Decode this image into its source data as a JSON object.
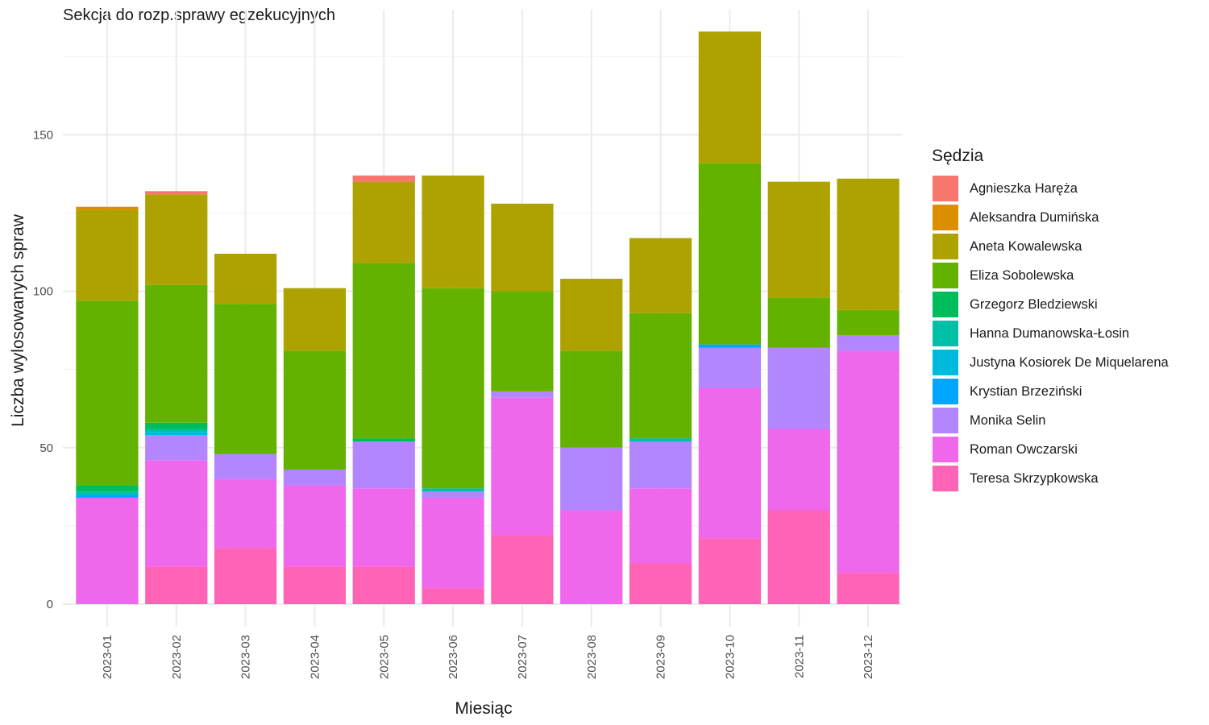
{
  "chart_data": {
    "type": "bar",
    "stacked": true,
    "title": "Sekcja do rozp.sprawy egzekucyjnych",
    "xlabel": "Miesiąc",
    "ylabel": "Liczba wylosowanych spraw",
    "ylim": [
      0,
      190
    ],
    "yticks": [
      "0",
      "50",
      "100",
      "150"
    ],
    "grid": true,
    "legend_title": "Sędzia",
    "legend_position": "right",
    "categories": [
      "2023-01",
      "2023-02",
      "2023-03",
      "2023-04",
      "2023-05",
      "2023-06",
      "2023-07",
      "2023-08",
      "2023-09",
      "2023-10",
      "2023-11",
      "2023-12"
    ],
    "series": [
      {
        "name": "Agnieszka Haręża",
        "color": "#F8766D",
        "values": [
          0,
          1,
          0,
          0,
          2,
          0,
          0,
          0,
          0,
          0,
          0,
          0
        ]
      },
      {
        "name": "Aleksandra Dumińska",
        "color": "#DB8E00",
        "values": [
          1,
          0,
          0,
          0,
          0,
          0,
          0,
          0,
          0,
          0,
          0,
          0
        ]
      },
      {
        "name": "Aneta Kowalewska",
        "color": "#AEA200",
        "values": [
          29,
          29,
          16,
          20,
          26,
          36,
          28,
          23,
          24,
          42,
          37,
          42
        ]
      },
      {
        "name": "Eliza Sobolewska",
        "color": "#64B200",
        "values": [
          59,
          44,
          48,
          38,
          56,
          64,
          32,
          31,
          40,
          58,
          16,
          8
        ]
      },
      {
        "name": "Grzegorz Bledziewski",
        "color": "#00BD5C",
        "values": [
          2,
          2,
          0,
          0,
          1,
          0,
          0,
          0,
          0,
          0,
          0,
          0
        ]
      },
      {
        "name": "Hanna Dumanowska-Łosin",
        "color": "#00C1A7",
        "values": [
          1,
          1,
          0,
          0,
          0,
          1,
          0,
          0,
          1,
          0,
          0,
          0
        ]
      },
      {
        "name": "Justyna Kosiorek De Miquelarena",
        "color": "#00BADE",
        "values": [
          0,
          1,
          0,
          0,
          0,
          0,
          0,
          0,
          0,
          0,
          0,
          0
        ]
      },
      {
        "name": "Krystian Brzeziński",
        "color": "#00A6FF",
        "values": [
          1,
          0,
          0,
          0,
          0,
          0,
          0,
          0,
          0,
          1,
          0,
          0
        ]
      },
      {
        "name": "Monika Selin",
        "color": "#B385FF",
        "values": [
          0,
          8,
          8,
          5,
          15,
          2,
          2,
          20,
          15,
          13,
          26,
          5
        ]
      },
      {
        "name": "Roman Owczarski",
        "color": "#EF67EB",
        "values": [
          34,
          34,
          22,
          26,
          25,
          29,
          44,
          30,
          24,
          48,
          26,
          71
        ]
      },
      {
        "name": "Teresa Skrzypkowska",
        "color": "#FF63B6",
        "values": [
          0,
          12,
          18,
          12,
          12,
          5,
          22,
          0,
          13,
          21,
          30,
          10
        ]
      }
    ]
  }
}
